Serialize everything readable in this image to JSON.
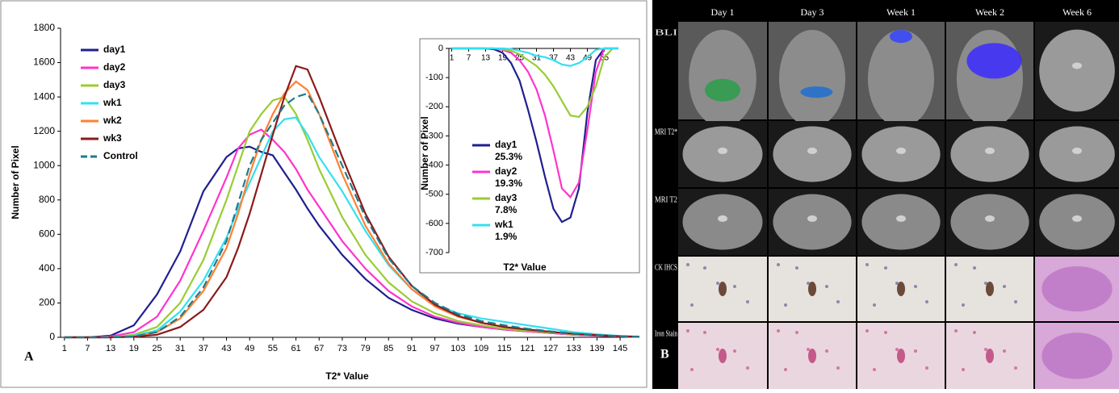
{
  "chart_data": [
    {
      "type": "line",
      "panel": "A",
      "x_label": "T2* Value",
      "y_label": "Number of Pixel",
      "x": [
        1,
        7,
        13,
        19,
        25,
        31,
        37,
        43,
        46,
        49,
        52,
        55,
        58,
        61,
        64,
        67,
        73,
        79,
        85,
        91,
        97,
        103,
        109,
        115,
        121,
        127,
        133,
        139,
        145,
        150
      ],
      "xlim": [
        0,
        150
      ],
      "xticks": [
        1,
        7,
        13,
        19,
        25,
        31,
        37,
        43,
        49,
        55,
        61,
        67,
        73,
        79,
        85,
        91,
        97,
        103,
        109,
        115,
        121,
        127,
        133,
        139,
        145
      ],
      "ylim": [
        0,
        1800
      ],
      "yticks": [
        0,
        200,
        400,
        600,
        800,
        1000,
        1200,
        1400,
        1600,
        1800
      ],
      "series": [
        {
          "name": "day1",
          "color": "#1f1f8f",
          "values": [
            0,
            0,
            10,
            70,
            250,
            500,
            850,
            1050,
            1100,
            1110,
            1080,
            1060,
            960,
            860,
            750,
            650,
            480,
            340,
            230,
            160,
            110,
            80,
            60,
            45,
            35,
            25,
            15,
            10,
            5,
            3
          ]
        },
        {
          "name": "day2",
          "color": "#ff33cc",
          "values": [
            0,
            0,
            5,
            30,
            120,
            330,
            620,
            930,
            1100,
            1180,
            1210,
            1150,
            1080,
            980,
            860,
            760,
            560,
            400,
            270,
            180,
            120,
            85,
            60,
            45,
            35,
            25,
            15,
            10,
            5,
            3
          ]
        },
        {
          "name": "day3",
          "color": "#99cc33",
          "values": [
            0,
            0,
            0,
            15,
            60,
            200,
            450,
            800,
            1000,
            1200,
            1300,
            1380,
            1400,
            1300,
            1150,
            980,
            700,
            480,
            320,
            210,
            140,
            95,
            70,
            50,
            38,
            28,
            18,
            12,
            6,
            3
          ]
        },
        {
          "name": "wk1",
          "color": "#33e0f0",
          "values": [
            0,
            0,
            0,
            10,
            40,
            150,
            330,
            580,
            750,
            900,
            1050,
            1200,
            1270,
            1280,
            1180,
            1050,
            850,
            620,
            420,
            280,
            190,
            140,
            110,
            90,
            70,
            50,
            30,
            18,
            8,
            4
          ]
        },
        {
          "name": "wk2",
          "color": "#ff8033",
          "values": [
            0,
            0,
            0,
            5,
            30,
            110,
            270,
            520,
            720,
            950,
            1150,
            1300,
            1420,
            1490,
            1440,
            1300,
            950,
            650,
            430,
            280,
            180,
            120,
            85,
            60,
            45,
            32,
            20,
            12,
            6,
            3
          ]
        },
        {
          "name": "wk3",
          "color": "#8b1a1a",
          "values": [
            0,
            0,
            0,
            3,
            15,
            60,
            160,
            350,
            520,
            720,
            950,
            1180,
            1400,
            1580,
            1560,
            1400,
            1050,
            720,
            470,
            300,
            190,
            125,
            85,
            60,
            45,
            32,
            20,
            12,
            6,
            3
          ]
        },
        {
          "name": "Control",
          "color": "#1f7a8c",
          "dashed": true,
          "values": [
            0,
            0,
            0,
            5,
            30,
            120,
            290,
            560,
            780,
            1000,
            1150,
            1250,
            1350,
            1400,
            1420,
            1300,
            1000,
            700,
            460,
            300,
            200,
            135,
            95,
            70,
            50,
            35,
            22,
            13,
            7,
            3
          ]
        }
      ]
    },
    {
      "type": "line",
      "x_label": "T2* Value",
      "y_label": "Number of Pixel",
      "x": [
        1,
        7,
        13,
        16,
        19,
        22,
        25,
        28,
        31,
        34,
        37,
        40,
        43,
        46,
        49,
        52,
        55,
        58,
        60
      ],
      "xlim": [
        0,
        60
      ],
      "xticks": [
        1,
        7,
        13,
        19,
        25,
        31,
        37,
        43,
        49,
        55
      ],
      "ylim": [
        -700,
        0
      ],
      "yticks": [
        0,
        -100,
        -200,
        -300,
        -400,
        -500,
        -600,
        -700
      ],
      "series": [
        {
          "name": "day1",
          "note": "25.3%",
          "color": "#1f1f8f",
          "values": [
            0,
            0,
            0,
            -3,
            -15,
            -50,
            -110,
            -210,
            -320,
            -440,
            -550,
            -595,
            -580,
            -480,
            -220,
            -40,
            0,
            0,
            0
          ]
        },
        {
          "name": "day2",
          "note": "19.3%",
          "color": "#ff33cc",
          "values": [
            0,
            0,
            0,
            0,
            -5,
            -15,
            -40,
            -80,
            -140,
            -230,
            -350,
            -480,
            -510,
            -460,
            -280,
            -80,
            0,
            0,
            0
          ]
        },
        {
          "name": "day3",
          "note": "7.8%",
          "color": "#99cc33",
          "values": [
            0,
            0,
            0,
            0,
            -3,
            -8,
            -20,
            -40,
            -60,
            -90,
            -130,
            -180,
            -230,
            -235,
            -200,
            -130,
            -30,
            0,
            0
          ]
        },
        {
          "name": "wk1",
          "note": "1.9%",
          "color": "#33e0f0",
          "values": [
            0,
            0,
            0,
            0,
            0,
            -2,
            -8,
            -15,
            -25,
            -30,
            -40,
            -55,
            -60,
            -50,
            -30,
            -5,
            0,
            0,
            0
          ]
        }
      ]
    }
  ],
  "panel_b": {
    "label": "B",
    "columns": [
      "Day 1",
      "Day 3",
      "Week 1",
      "Week 2",
      "Week 6"
    ],
    "rows": [
      "BLI",
      "MRI T2*",
      "MRI T2",
      "CK IHCS",
      "Iron Stain"
    ]
  }
}
